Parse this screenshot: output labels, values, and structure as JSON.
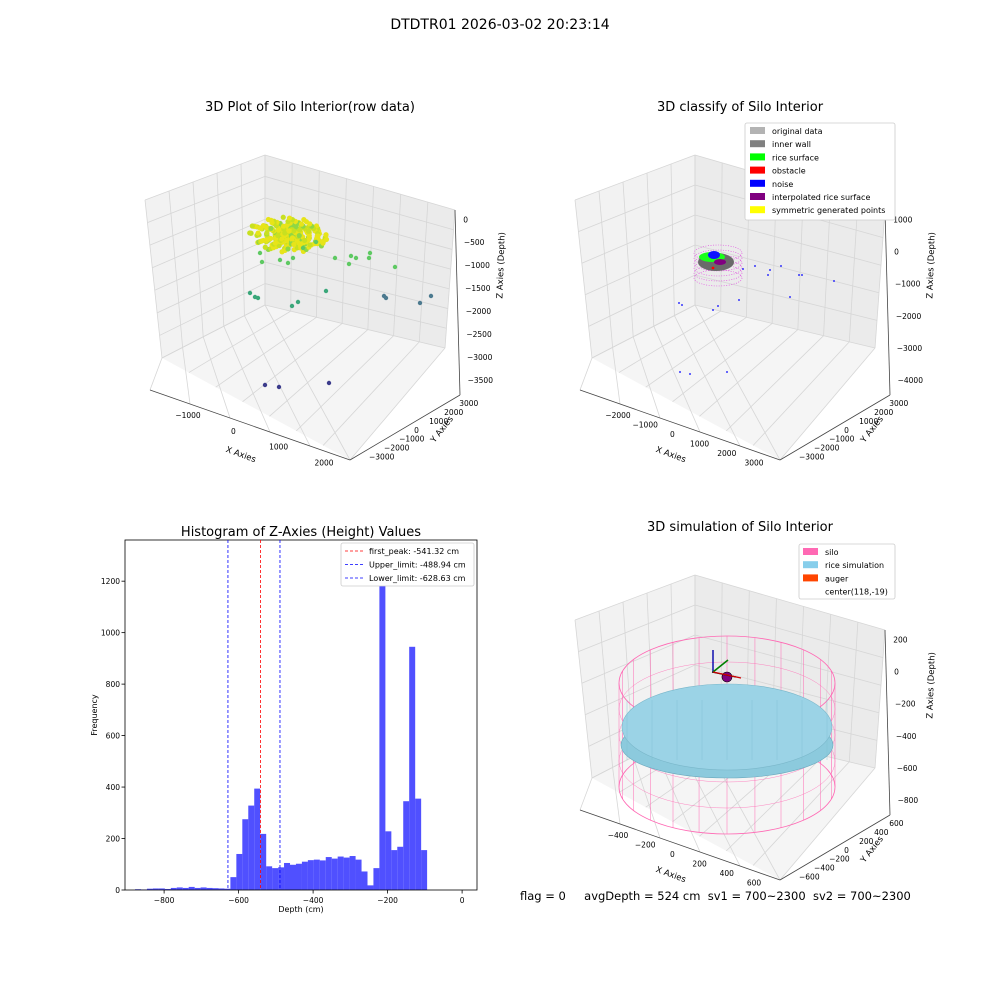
{
  "suptitle": "DTDTR01 2026-03-02 20:23:14",
  "footer": {
    "flag": "flag = 0",
    "avg_depth": "avgDepth = 524 cm",
    "sv1": "sv1 = 700~2300",
    "sv2": "sv2 = 700~2300"
  },
  "chart_data": [
    {
      "type": "scatter",
      "title": "3D Plot of Silo Interior(row data)",
      "xlabel": "X Axies",
      "ylabel": "Y Axies",
      "zlabel": "Z Axies (Depth)",
      "x_ticks": [
        "−1000",
        "0",
        "1000",
        "2000"
      ],
      "y_ticks": [
        "−3000",
        "−2000",
        "−1000",
        "0",
        "1000",
        "2000",
        "3000"
      ],
      "z_ticks": [
        "0",
        "−500",
        "−1000",
        "−1500",
        "−2000",
        "−2500",
        "−3000",
        "−3500"
      ],
      "colormap": [
        "#440154",
        "#3b528b",
        "#21918c",
        "#5ec962",
        "#fde725"
      ],
      "grid": true
    },
    {
      "type": "scatter",
      "title": "3D classify of Silo Interior",
      "xlabel": "X Axies",
      "ylabel": "Y Axies",
      "zlabel": "Z Axies (Depth)",
      "x_ticks": [
        "−2000",
        "−1000",
        "0",
        "1000",
        "2000",
        "3000"
      ],
      "y_ticks": [
        "−3000",
        "−2000",
        "−1000",
        "0",
        "1000",
        "2000",
        "3000"
      ],
      "z_ticks": [
        "1000",
        "0",
        "−1000",
        "−2000",
        "−3000",
        "−4000"
      ],
      "legend_position": "top-right",
      "legend": [
        {
          "label": "original data",
          "color": "#b3b3b3"
        },
        {
          "label": "inner wall",
          "color": "#808080"
        },
        {
          "label": "rice surface",
          "color": "#00ff00"
        },
        {
          "label": "obstacle",
          "color": "#ff0000"
        },
        {
          "label": "noise",
          "color": "#0000ff"
        },
        {
          "label": "interpolated rice surface",
          "color": "#800080"
        },
        {
          "label": "symmetric generated points",
          "color": "#ffff00"
        }
      ],
      "grid": true
    },
    {
      "type": "bar",
      "title": "Histogram of Z-Axies (Height) Values",
      "xlabel": "Depth (cm)",
      "ylabel": "Frequency",
      "bar_color": "#5050ff",
      "xlim": [
        -905,
        40
      ],
      "ylim": [
        0,
        1360
      ],
      "x_ticks": [
        -800,
        -600,
        -400,
        -200,
        0
      ],
      "x_tick_labels": [
        "−800",
        "−600",
        "−400",
        "−200",
        "0"
      ],
      "y_ticks": [
        0,
        200,
        400,
        600,
        800,
        1000,
        1200
      ],
      "y_tick_labels": [
        "0",
        "200",
        "400",
        "600",
        "800",
        "1000",
        "1200"
      ],
      "bin_width": 16.1,
      "bins": [
        {
          "x": -870,
          "value": 3
        },
        {
          "x": -854,
          "value": 2
        },
        {
          "x": -838,
          "value": 5
        },
        {
          "x": -822,
          "value": 6
        },
        {
          "x": -806,
          "value": 6
        },
        {
          "x": -790,
          "value": 4
        },
        {
          "x": -774,
          "value": 8
        },
        {
          "x": -758,
          "value": 10
        },
        {
          "x": -742,
          "value": 8
        },
        {
          "x": -726,
          "value": 12
        },
        {
          "x": -710,
          "value": 8
        },
        {
          "x": -694,
          "value": 10
        },
        {
          "x": -678,
          "value": 8
        },
        {
          "x": -662,
          "value": 7
        },
        {
          "x": -646,
          "value": 6
        },
        {
          "x": -630,
          "value": 5
        },
        {
          "x": -614,
          "value": 50
        },
        {
          "x": -598,
          "value": 140
        },
        {
          "x": -582,
          "value": 275
        },
        {
          "x": -566,
          "value": 328
        },
        {
          "x": -550,
          "value": 394
        },
        {
          "x": -534,
          "value": 218
        },
        {
          "x": -518,
          "value": 92
        },
        {
          "x": -502,
          "value": 85
        },
        {
          "x": -486,
          "value": 88
        },
        {
          "x": -470,
          "value": 105
        },
        {
          "x": -454,
          "value": 98
        },
        {
          "x": -438,
          "value": 102
        },
        {
          "x": -422,
          "value": 110
        },
        {
          "x": -406,
          "value": 116
        },
        {
          "x": -390,
          "value": 118
        },
        {
          "x": -374,
          "value": 115
        },
        {
          "x": -358,
          "value": 128
        },
        {
          "x": -342,
          "value": 122
        },
        {
          "x": -326,
          "value": 130
        },
        {
          "x": -310,
          "value": 126
        },
        {
          "x": -294,
          "value": 132
        },
        {
          "x": -278,
          "value": 118
        },
        {
          "x": -262,
          "value": 72
        },
        {
          "x": -246,
          "value": 18
        },
        {
          "x": -230,
          "value": 85
        },
        {
          "x": -214,
          "value": 1280
        },
        {
          "x": -198,
          "value": 228
        },
        {
          "x": -182,
          "value": 155
        },
        {
          "x": -166,
          "value": 168
        },
        {
          "x": -150,
          "value": 345
        },
        {
          "x": -134,
          "value": 945
        },
        {
          "x": -118,
          "value": 355
        },
        {
          "x": -102,
          "value": 155
        }
      ],
      "vlines": [
        {
          "label": "first_peak: -541.32 cm",
          "x": -541.32,
          "color": "#ff0000"
        },
        {
          "label": "Upper_limit: -488.94 cm",
          "x": -488.94,
          "color": "#0000ff"
        },
        {
          "label": "Lower_limit: -628.63 cm",
          "x": -628.63,
          "color": "#0000ff"
        }
      ],
      "legend_position": "top-right"
    },
    {
      "type": "scatter",
      "title": "3D simulation of Silo Interior",
      "xlabel": "X Axies",
      "ylabel": "Y Axies",
      "zlabel": "Z Axies (Depth)",
      "x_ticks": [
        "−400",
        "−200",
        "0",
        "200",
        "400",
        "600"
      ],
      "y_ticks": [
        "−600",
        "−400",
        "−200",
        "0",
        "200",
        "400",
        "600"
      ],
      "z_ticks": [
        "200",
        "0",
        "−200",
        "−400",
        "−600",
        "−800"
      ],
      "legend_position": "top-right",
      "legend": [
        {
          "label": "silo",
          "color": "#ff69b4"
        },
        {
          "label": "rice simulation",
          "color": "#87ceeb"
        },
        {
          "label": "auger",
          "color": "#ff4500"
        },
        {
          "label": "center(118,-19)",
          "color": ""
        }
      ],
      "grid": true
    }
  ]
}
